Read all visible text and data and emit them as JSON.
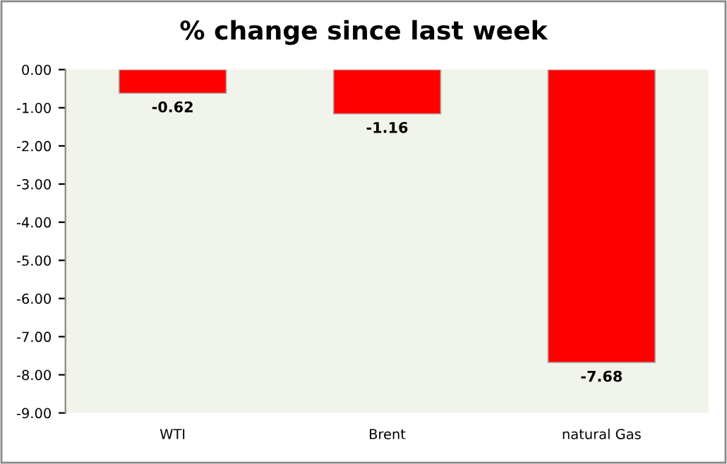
{
  "chart_data": {
    "type": "bar",
    "title": "% change since last week",
    "categories": [
      "WTI",
      "Brent",
      "natural Gas"
    ],
    "values": [
      -0.62,
      -1.16,
      -7.68
    ],
    "color": "#ff0000",
    "data_labels": true,
    "ylim": [
      -9,
      0
    ],
    "yticks": [
      {
        "value": 0,
        "label": "0.00"
      },
      {
        "value": -1,
        "label": "-1.00"
      },
      {
        "value": -2,
        "label": "-2.00"
      },
      {
        "value": -3,
        "label": "-3.00"
      },
      {
        "value": -4,
        "label": "-4.00"
      },
      {
        "value": -5,
        "label": "-5.00"
      },
      {
        "value": -6,
        "label": "-6.00"
      },
      {
        "value": -7,
        "label": "-7.00"
      },
      {
        "value": -8,
        "label": "-8.00"
      },
      {
        "value": -9,
        "label": "-9.00"
      }
    ],
    "grid": false,
    "legend": false
  }
}
